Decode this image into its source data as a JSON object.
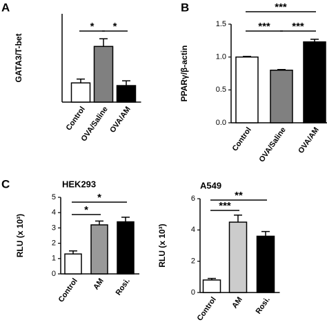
{
  "chart_data": [
    {
      "type": "bar",
      "panel": "A",
      "ylabel": "GATA3/T-bet",
      "categories": [
        "Control",
        "OVA/Saline",
        "OVA/AM"
      ],
      "values": [
        1.0,
        2.9,
        0.86
      ],
      "errors": [
        0.2,
        0.4,
        0.25
      ],
      "colors": [
        "#ffffff",
        "#808080",
        "#000000"
      ],
      "ylim": [
        0,
        4.6
      ],
      "significance": [
        {
          "from": 0,
          "to": 1,
          "label": "*"
        },
        {
          "from": 1,
          "to": 2,
          "label": "*"
        }
      ]
    },
    {
      "type": "bar",
      "panel": "B",
      "ylabel": "PPARγ/β-actin",
      "categories": [
        "Control",
        "OVA/Saline",
        "OVA/AM"
      ],
      "values": [
        1.0,
        0.8,
        1.23
      ],
      "errors": [
        0.01,
        0.01,
        0.04
      ],
      "colors": [
        "#ffffff",
        "#808080",
        "#000000"
      ],
      "ylim": [
        0,
        1.5
      ],
      "yticks": [
        {
          "value": 0,
          "label": "0.0"
        },
        {
          "value": 0.5,
          "label": "0.5"
        },
        {
          "value": 1,
          "label": "1.0"
        },
        {
          "value": 1.5,
          "label": "1.5"
        }
      ],
      "significance": [
        {
          "from": 0,
          "to": 2,
          "label": "***"
        },
        {
          "from": 0,
          "to": 1,
          "label": "***"
        },
        {
          "from": 1,
          "to": 2,
          "label": "***"
        }
      ]
    },
    {
      "type": "bar",
      "panel": "C",
      "title": "HEK293",
      "ylabel": "RLU (x 10³)",
      "categories": [
        "Control",
        "AM",
        "Rosi."
      ],
      "values": [
        1.3,
        3.2,
        3.4
      ],
      "errors": [
        0.2,
        0.25,
        0.3
      ],
      "colors": [
        "#ffffff",
        "#999999",
        "#000000"
      ],
      "ylim": [
        0,
        5
      ],
      "yticks": [
        0,
        1,
        2,
        3,
        4,
        5
      ],
      "significance": [
        {
          "from": 0,
          "to": 2,
          "label": "*"
        },
        {
          "from": 0,
          "to": 1,
          "label": "*"
        }
      ]
    },
    {
      "type": "bar",
      "title": "A549",
      "ylabel": "RLU (x 10³)",
      "categories": [
        "Control",
        "AM",
        "Rosi."
      ],
      "values": [
        0.8,
        4.5,
        3.6
      ],
      "errors": [
        0.1,
        0.45,
        0.3
      ],
      "colors": [
        "#ffffff",
        "#cccccc",
        "#000000"
      ],
      "ylim": [
        0,
        6
      ],
      "yticks": [
        0,
        2,
        4,
        6
      ],
      "significance": [
        {
          "from": 0,
          "to": 2,
          "label": "**"
        },
        {
          "from": 0,
          "to": 1,
          "label": "***"
        }
      ]
    }
  ]
}
